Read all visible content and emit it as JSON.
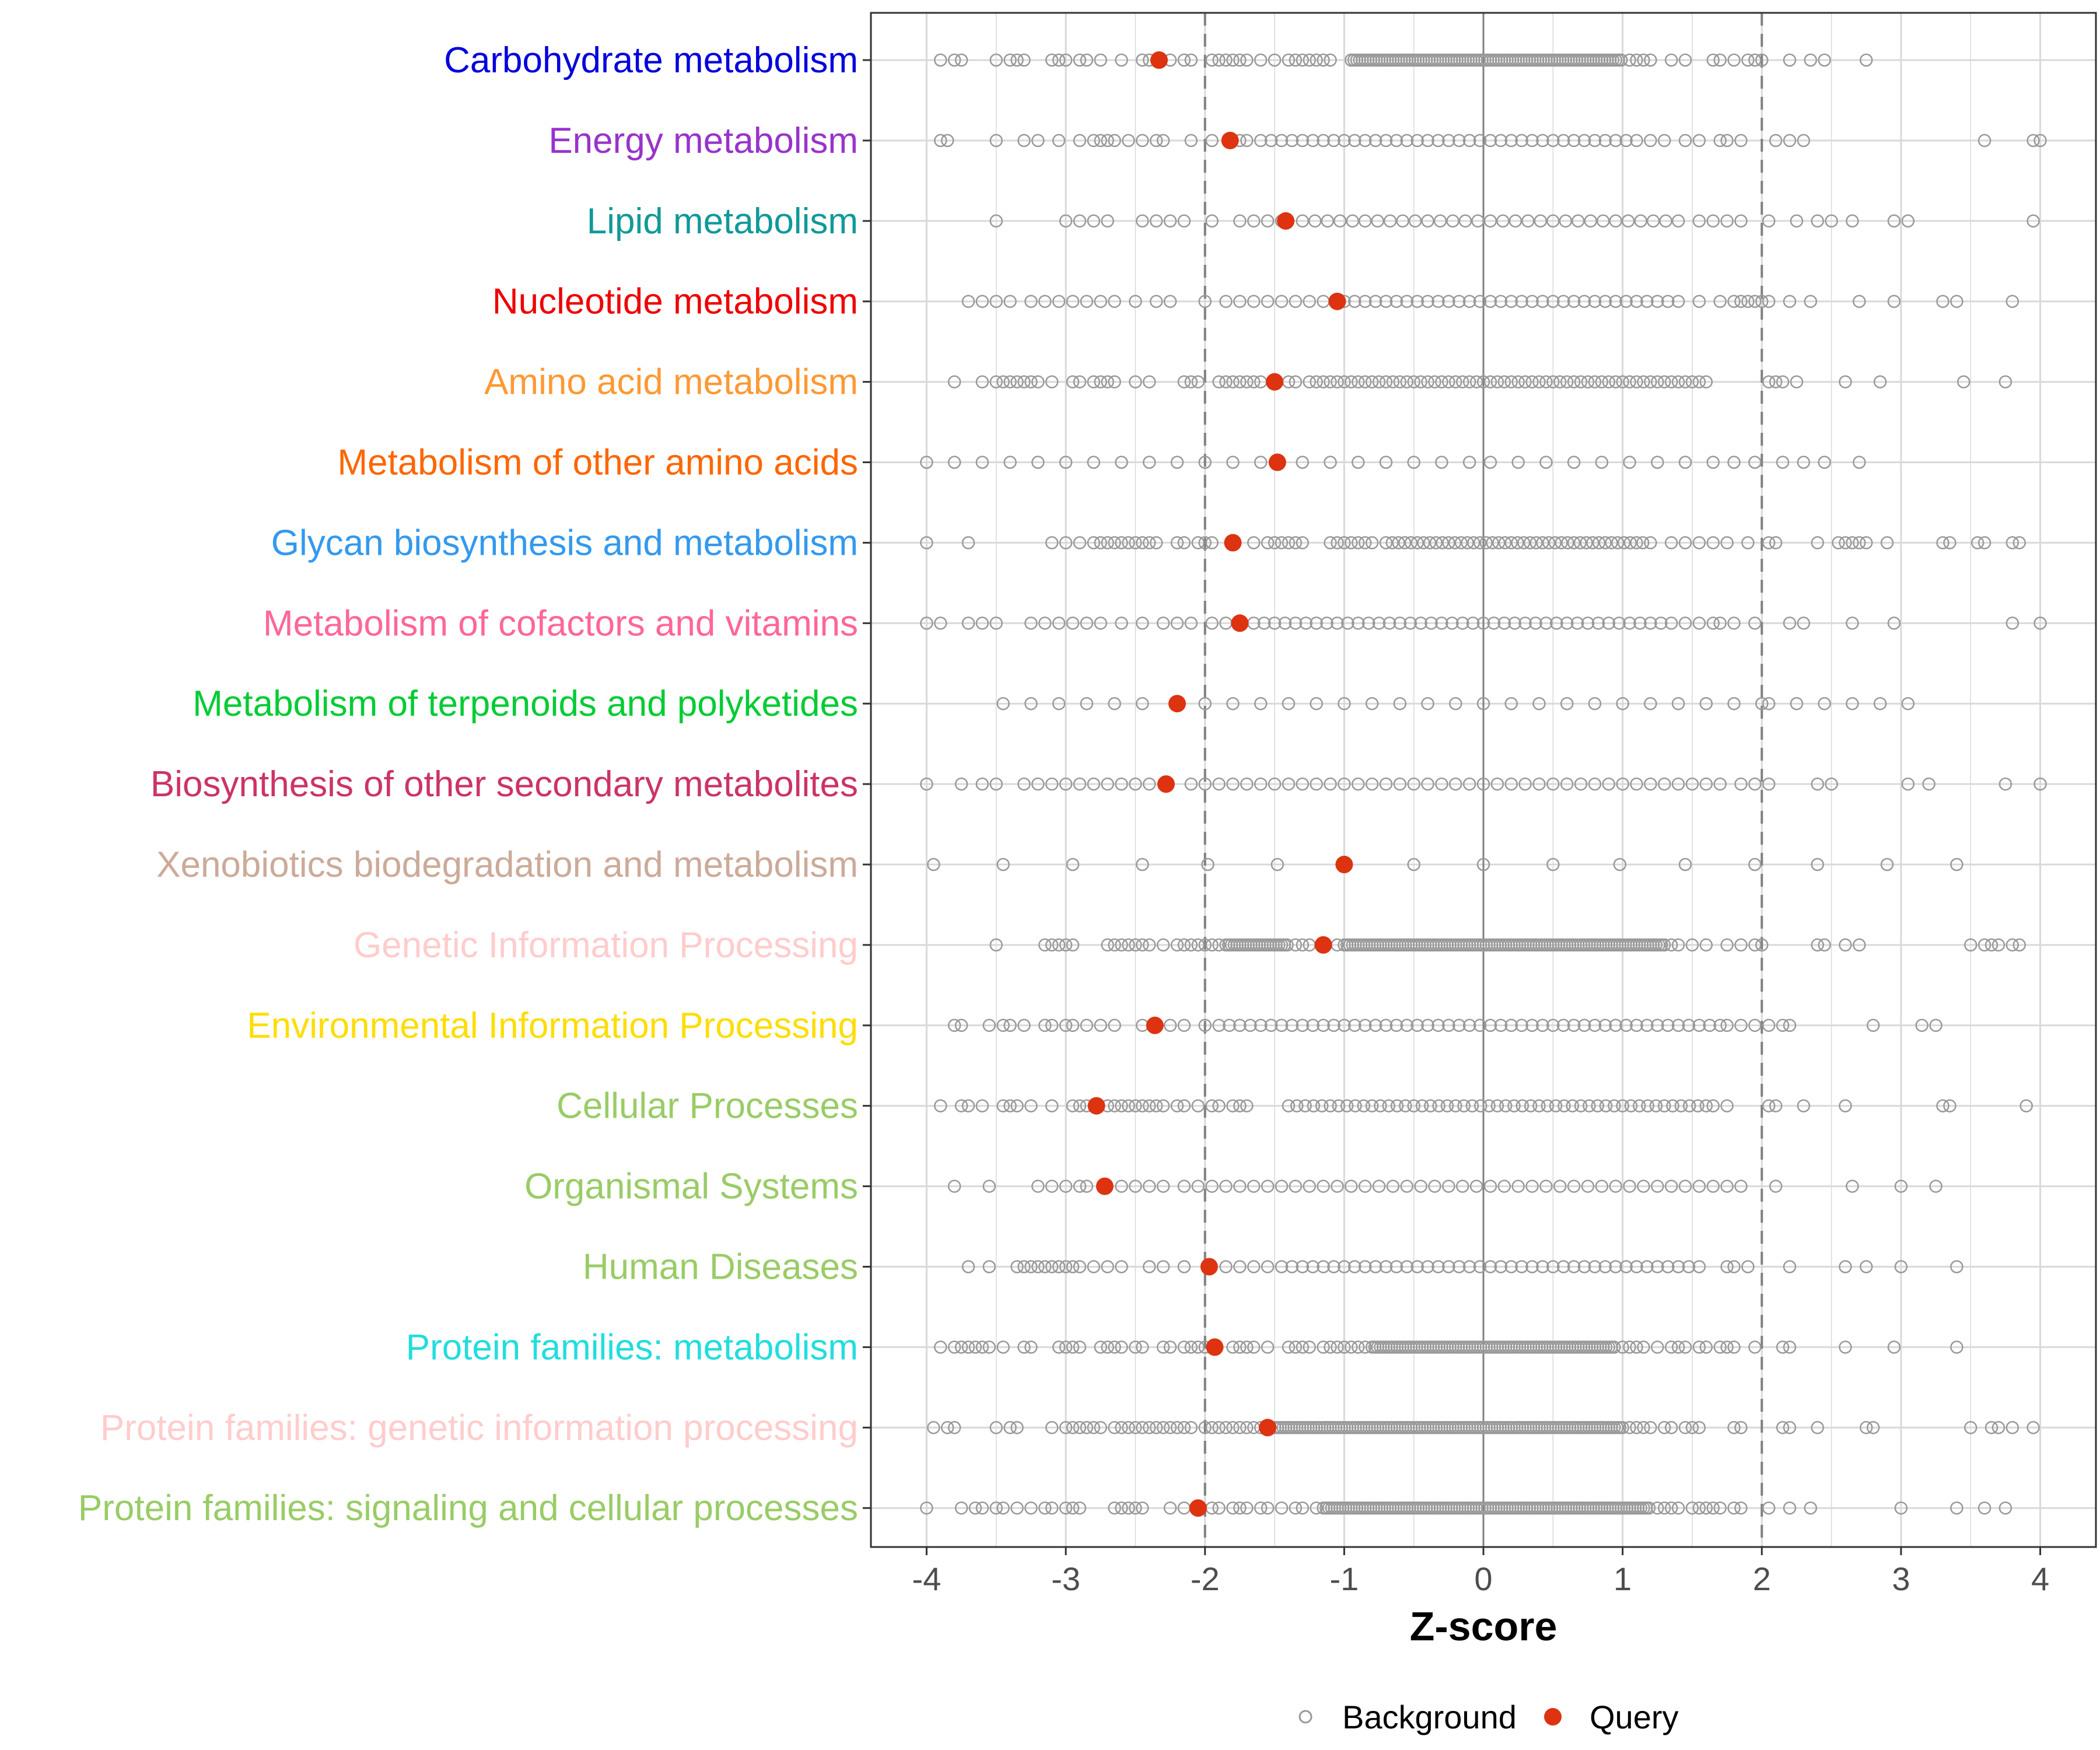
{
  "chart_data": {
    "type": "scatter",
    "title": "",
    "xlabel": "Z-score",
    "ylabel": "",
    "xlim": [
      -4.4,
      4.4
    ],
    "x_ticks": [
      -4,
      -3,
      -2,
      -1,
      0,
      1,
      2,
      3,
      4
    ],
    "x_tick_labels": [
      "-4",
      "-3",
      "-2",
      "-1",
      "0",
      "1",
      "2",
      "3",
      "4"
    ],
    "reference_lines": {
      "dashed": [
        -2,
        2
      ],
      "solid": [
        0
      ]
    },
    "legend": {
      "position": "bottom",
      "items": [
        {
          "name": "Background",
          "marker": "open-circle",
          "color": "#999999"
        },
        {
          "name": "Query",
          "marker": "filled-circle",
          "color": "#dd3311"
        }
      ]
    },
    "categories": [
      {
        "name": "Carbohydrate metabolism",
        "color": "#0000dd",
        "query": -2.33,
        "background_sparse": [
          -3.9,
          -3.8,
          -3.75,
          -3.5,
          -3.4,
          -3.35,
          -3.3,
          -3.1,
          -3.05,
          -3.0,
          -2.9,
          -2.85,
          -2.75,
          -2.6,
          -2.45,
          -2.4,
          -2.25,
          -2.15,
          -2.1,
          -1.95,
          -1.9,
          -1.85,
          -1.8,
          -1.75,
          -1.7,
          -1.6,
          -1.5,
          -1.4,
          -1.35,
          -1.3,
          -1.25,
          -1.2,
          -1.15,
          -1.1,
          1.05,
          1.1,
          1.15,
          1.2,
          1.35,
          1.45,
          1.65,
          1.7,
          1.8,
          1.9,
          1.95,
          2.0,
          2.2,
          2.35,
          2.45,
          2.75
        ],
        "background_dense": [
          [
            -0.95,
            1.0
          ]
        ]
      },
      {
        "name": "Energy metabolism",
        "color": "#9933cc",
        "query": -1.82,
        "background_sparse": [
          -3.9,
          -3.85,
          -3.5,
          -3.3,
          -3.2,
          -3.05,
          -2.9,
          -2.8,
          -2.75,
          -2.7,
          -2.65,
          -2.55,
          -2.45,
          -2.35,
          -2.3,
          -2.1,
          -1.95,
          -1.75,
          -1.7,
          1.1,
          1.2,
          1.3,
          1.45,
          1.55,
          1.7,
          1.75,
          1.85,
          2.1,
          2.2,
          2.3,
          3.6,
          3.95,
          4.0
        ],
        "background_dense": [],
        "background_step": [
          -1.6,
          1.05,
          0.075
        ]
      },
      {
        "name": "Lipid metabolism",
        "color": "#119999",
        "query": -1.42,
        "background_sparse": [
          -3.5,
          -3.0,
          -2.9,
          -2.8,
          -2.7,
          -2.45,
          -2.35,
          -2.25,
          -2.15,
          -1.95,
          -1.75,
          -1.65,
          -1.55,
          -1.45,
          1.55,
          1.65,
          1.75,
          1.85,
          2.05,
          2.25,
          2.4,
          2.5,
          2.65,
          2.95,
          3.05,
          3.95
        ],
        "background_dense": [],
        "background_step": [
          -1.3,
          1.45,
          0.09
        ]
      },
      {
        "name": "Nucleotide metabolism",
        "color": "#ee0000",
        "query": -1.05,
        "background_sparse": [
          -3.7,
          -3.6,
          -3.5,
          -3.4,
          -3.25,
          -3.15,
          -3.05,
          -2.95,
          -2.85,
          -2.75,
          -2.65,
          -2.5,
          -2.35,
          -2.25,
          -2.0,
          -1.85,
          -1.75,
          -1.65,
          -1.55,
          -1.45,
          -1.35,
          -1.25,
          -1.15,
          1.55,
          1.7,
          1.8,
          1.85,
          1.9,
          1.95,
          2.0,
          2.05,
          2.2,
          2.35,
          2.7,
          2.95,
          3.3,
          3.4,
          3.8
        ],
        "background_dense": [],
        "background_step": [
          -1.0,
          1.4,
          0.075
        ]
      },
      {
        "name": "Amino acid metabolism",
        "color": "#ff9933",
        "query": -1.5,
        "background_sparse": [
          -3.8,
          -3.6,
          -3.5,
          -3.45,
          -3.4,
          -3.35,
          -3.3,
          -3.25,
          -3.2,
          -3.1,
          -2.95,
          -2.9,
          -2.8,
          -2.75,
          -2.7,
          -2.65,
          -2.5,
          -2.4,
          -2.15,
          -2.1,
          -2.05,
          -1.9,
          -1.85,
          -1.8,
          -1.75,
          -1.7,
          -1.65,
          -1.6,
          -1.4,
          -1.35,
          -1.25,
          1.6,
          2.05,
          2.1,
          2.15,
          2.25,
          2.6,
          2.85,
          3.45,
          3.75
        ],
        "background_dense": [],
        "background_step": [
          -1.2,
          1.55,
          0.05
        ]
      },
      {
        "name": "Metabolism of other amino acids",
        "color": "#ff6600",
        "query": -1.48,
        "background_sparse": [
          -4.0,
          -3.8,
          -3.6,
          -3.4,
          -3.2,
          -3.0,
          -2.8,
          -2.6,
          -2.4,
          -2.2,
          -2.0,
          -1.8,
          -1.6,
          -1.3,
          -1.1,
          -0.9,
          -0.7,
          -0.5,
          -0.3,
          -0.1,
          0.05,
          0.25,
          0.45,
          0.65,
          0.85,
          1.05,
          1.25,
          1.45,
          1.65,
          1.8,
          1.95,
          2.15,
          2.3,
          2.45,
          2.7
        ],
        "background_dense": []
      },
      {
        "name": "Glycan biosynthesis and metabolism",
        "color": "#3399ee",
        "query": -1.8,
        "background_sparse": [
          -4.0,
          -3.7,
          -3.1,
          -3.0,
          -2.9,
          -2.8,
          -2.75,
          -2.7,
          -2.65,
          -2.6,
          -2.55,
          -2.5,
          -2.45,
          -2.4,
          -2.35,
          -2.2,
          -2.15,
          -2.05,
          -2.0,
          -1.95,
          -1.65,
          -1.55,
          -1.5,
          -1.45,
          -1.4,
          -1.35,
          -1.3,
          -1.1,
          -1.05,
          -1.0,
          -0.95,
          -0.9,
          -0.85,
          -0.8,
          1.2,
          1.35,
          1.45,
          1.55,
          1.65,
          1.75,
          1.9,
          2.05,
          2.1,
          2.4,
          2.55,
          2.6,
          2.65,
          2.7,
          2.75,
          2.9,
          3.3,
          3.35,
          3.55,
          3.6,
          3.8,
          3.85
        ],
        "background_dense": [],
        "background_step": [
          -0.7,
          1.15,
          0.045
        ]
      },
      {
        "name": "Metabolism of cofactors and vitamins",
        "color": "#ff6699",
        "query": -1.75,
        "background_sparse": [
          -4.0,
          -3.9,
          -3.7,
          -3.6,
          -3.5,
          -3.25,
          -3.15,
          -3.05,
          -2.95,
          -2.85,
          -2.75,
          -2.6,
          -2.45,
          -2.3,
          -2.2,
          -2.1,
          -1.95,
          -1.85,
          1.45,
          1.55,
          1.65,
          1.7,
          1.8,
          1.95,
          2.2,
          2.3,
          2.65,
          2.95,
          3.8,
          4.0
        ],
        "background_dense": [],
        "background_step": [
          -1.65,
          1.35,
          0.075
        ]
      },
      {
        "name": "Metabolism of terpenoids and polyketides",
        "color": "#00cc33",
        "query": -2.2,
        "background_sparse": [
          -3.45,
          -3.25,
          -3.05,
          -2.85,
          -2.65,
          -2.45,
          -2.0,
          -1.8,
          -1.6,
          -1.4,
          -1.2,
          -1.0,
          -0.8,
          -0.6,
          -0.4,
          -0.2,
          0.0,
          0.2,
          0.4,
          0.6,
          0.8,
          1.0,
          1.2,
          1.4,
          1.6,
          1.8,
          2.0,
          2.05,
          2.25,
          2.45,
          2.65,
          2.85,
          3.05
        ],
        "background_dense": []
      },
      {
        "name": "Biosynthesis of other secondary metabolites",
        "color": "#cc3366",
        "query": -2.28,
        "background_sparse": [
          -4.0,
          -3.75,
          -3.6,
          -3.5,
          -3.3,
          -3.2,
          -3.1,
          -3.0,
          -2.9,
          -2.8,
          -2.7,
          -2.6,
          -2.5,
          -2.4,
          -2.1,
          -2.0,
          1.85,
          1.95,
          2.05,
          2.4,
          2.5,
          3.05,
          3.2,
          3.75,
          4.0
        ],
        "background_dense": [],
        "background_step": [
          -1.9,
          1.75,
          0.1
        ]
      },
      {
        "name": "Xenobiotics biodegradation and metabolism",
        "color": "#ccaa99",
        "query": -1.0,
        "background_sparse": [
          -3.95,
          -3.45,
          -2.95,
          -2.45,
          -1.98,
          -1.48,
          -0.5,
          0.0,
          0.5,
          0.98,
          1.45,
          1.95,
          2.4,
          2.9,
          3.4
        ],
        "background_dense": []
      },
      {
        "name": "Genetic Information Processing",
        "color": "#ffcccc",
        "query": -1.15,
        "background_sparse": [
          -3.5,
          -3.15,
          -3.1,
          -3.05,
          -3.0,
          -2.95,
          -2.7,
          -2.65,
          -2.6,
          -2.55,
          -2.5,
          -2.45,
          -2.4,
          -2.3,
          -2.2,
          -2.15,
          -2.1,
          -2.05,
          -2.0,
          -1.95,
          -1.9,
          -1.35,
          -1.3,
          -1.25,
          -1.05,
          1.35,
          1.4,
          1.5,
          1.6,
          1.75,
          1.85,
          1.95,
          2.0,
          2.4,
          2.45,
          2.6,
          2.7,
          3.5,
          3.6,
          3.65,
          3.7,
          3.8,
          3.85
        ],
        "background_dense": [
          [
            -1.85,
            -1.4
          ],
          [
            -1.0,
            1.3
          ]
        ]
      },
      {
        "name": "Environmental Information Processing",
        "color": "#ffdd00",
        "query": -2.36,
        "background_sparse": [
          -3.8,
          -3.75,
          -3.55,
          -3.45,
          -3.4,
          -3.3,
          -3.15,
          -3.1,
          -3.0,
          -2.95,
          -2.85,
          -2.75,
          -2.65,
          -2.45,
          -2.25,
          -2.15,
          -2.0,
          1.75,
          1.85,
          1.95,
          2.05,
          2.15,
          2.2,
          2.8,
          3.15,
          3.25
        ],
        "background_dense": [],
        "background_step": [
          -1.9,
          1.7,
          0.075
        ]
      },
      {
        "name": "Cellular Processes",
        "color": "#99cc66",
        "query": -2.78,
        "background_sparse": [
          -3.9,
          -3.75,
          -3.7,
          -3.6,
          -3.45,
          -3.4,
          -3.35,
          -3.25,
          -3.1,
          -2.95,
          -2.9,
          -2.85,
          -2.7,
          -2.65,
          -2.6,
          -2.55,
          -2.5,
          -2.45,
          -2.4,
          -2.35,
          -2.3,
          -2.2,
          -2.15,
          -2.05,
          -1.95,
          -1.9,
          -1.8,
          -1.75,
          -1.7,
          1.65,
          1.75,
          2.05,
          2.1,
          2.3,
          2.6,
          3.3,
          3.35,
          3.9
        ],
        "background_dense": [],
        "background_step": [
          -1.4,
          1.6,
          0.06
        ]
      },
      {
        "name": "Organismal Systems",
        "color": "#99cc66",
        "query": -2.72,
        "background_sparse": [
          -3.8,
          -3.55,
          -3.2,
          -3.1,
          -3.0,
          -2.9,
          -2.85,
          -2.6,
          -2.5,
          -2.4,
          -2.3,
          -2.15,
          -2.05,
          1.55,
          1.65,
          1.75,
          1.85,
          2.1,
          2.65,
          3.0,
          3.25
        ],
        "background_dense": [],
        "background_step": [
          -1.95,
          1.45,
          0.1
        ]
      },
      {
        "name": "Human Diseases",
        "color": "#99cc66",
        "query": -1.97,
        "background_sparse": [
          -3.7,
          -3.55,
          -3.35,
          -3.3,
          -3.25,
          -3.2,
          -3.15,
          -3.1,
          -3.05,
          -3.0,
          -2.95,
          -2.9,
          -2.8,
          -2.7,
          -2.6,
          -2.4,
          -2.3,
          -2.15,
          -1.85,
          -1.75,
          -1.65,
          -1.55,
          1.55,
          1.75,
          1.8,
          1.9,
          2.2,
          2.6,
          2.75,
          3.0,
          3.4
        ],
        "background_dense": [],
        "background_step": [
          -1.45,
          1.5,
          0.075
        ]
      },
      {
        "name": "Protein families: metabolism",
        "color": "#22dddd",
        "query": -1.93,
        "background_sparse": [
          -3.9,
          -3.8,
          -3.75,
          -3.7,
          -3.65,
          -3.6,
          -3.55,
          -3.45,
          -3.3,
          -3.25,
          -3.05,
          -3.0,
          -2.95,
          -2.9,
          -2.75,
          -2.7,
          -2.65,
          -2.6,
          -2.5,
          -2.45,
          -2.3,
          -2.25,
          -2.15,
          -2.1,
          -2.05,
          -2.0,
          -1.8,
          -1.75,
          -1.7,
          -1.65,
          -1.55,
          -1.4,
          -1.35,
          -1.3,
          -1.25,
          -1.15,
          -1.1,
          -1.05,
          -1.0,
          -0.95,
          -0.9,
          -0.85,
          1.0,
          1.05,
          1.1,
          1.15,
          1.25,
          1.35,
          1.4,
          1.45,
          1.55,
          1.6,
          1.7,
          1.75,
          1.8,
          1.95,
          2.15,
          2.2,
          2.6,
          2.95,
          3.4
        ],
        "background_dense": [
          [
            -0.8,
            0.95
          ]
        ]
      },
      {
        "name": "Protein families: genetic information processing",
        "color": "#ffcccc",
        "query": -1.55,
        "background_sparse": [
          -3.95,
          -3.85,
          -3.8,
          -3.5,
          -3.4,
          -3.35,
          -3.1,
          -3.0,
          -2.95,
          -2.9,
          -2.85,
          -2.8,
          -2.75,
          -2.65,
          -2.6,
          -2.55,
          -2.5,
          -2.45,
          -2.4,
          -2.35,
          -2.3,
          -2.25,
          -2.2,
          -2.15,
          -2.1,
          -2.0,
          -1.95,
          -1.9,
          -1.85,
          -1.8,
          -1.75,
          -1.7,
          -1.65,
          -1.6,
          1.0,
          1.05,
          1.1,
          1.15,
          1.2,
          1.3,
          1.35,
          1.45,
          1.5,
          1.55,
          1.8,
          1.85,
          2.15,
          2.2,
          2.4,
          2.75,
          2.8,
          3.5,
          3.65,
          3.7,
          3.8,
          3.95
        ],
        "background_dense": [
          [
            -1.5,
            0.98
          ]
        ]
      },
      {
        "name": "Protein families: signaling and cellular processes",
        "color": "#99cc66",
        "query": -2.05,
        "background_sparse": [
          -4.0,
          -3.75,
          -3.65,
          -3.6,
          -3.5,
          -3.45,
          -3.35,
          -3.25,
          -3.15,
          -3.1,
          -3.0,
          -2.95,
          -2.9,
          -2.65,
          -2.6,
          -2.55,
          -2.5,
          -2.45,
          -2.25,
          -2.15,
          -1.95,
          -1.9,
          -1.8,
          -1.75,
          -1.7,
          -1.6,
          -1.55,
          -1.45,
          -1.35,
          -1.3,
          -1.2,
          1.25,
          1.3,
          1.35,
          1.4,
          1.5,
          1.55,
          1.6,
          1.65,
          1.7,
          1.8,
          1.85,
          2.05,
          2.2,
          2.35,
          3.0,
          3.4,
          3.6,
          3.75
        ],
        "background_dense": [
          [
            -1.15,
            1.2
          ]
        ]
      }
    ]
  }
}
